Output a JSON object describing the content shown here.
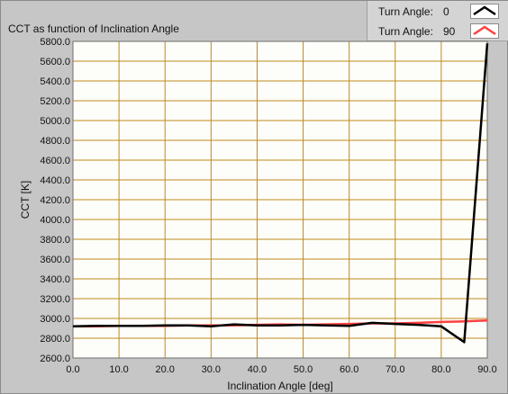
{
  "chart_title": "CCT as function of Inclination Angle",
  "legend": [
    {
      "label": "Turn Angle:",
      "value": "0",
      "color": "#000000"
    },
    {
      "label": "Turn Angle:",
      "value": "90",
      "color": "#ff4040"
    }
  ],
  "colors": {
    "plot_background": "#fdfdf9",
    "grid": "#c08a1c",
    "panel": "#c6c6c6"
  },
  "chart_data": {
    "type": "line",
    "xlabel": "Inclination Angle [deg]",
    "ylabel": "CCT [K]",
    "xlim": [
      0,
      90
    ],
    "ylim": [
      2600,
      5800
    ],
    "x_ticks": [
      "0.0",
      "10.0",
      "20.0",
      "30.0",
      "40.0",
      "50.0",
      "60.0",
      "70.0",
      "80.0",
      "90.0"
    ],
    "y_ticks": [
      "2600.0",
      "2800.0",
      "3000.0",
      "3200.0",
      "3400.0",
      "3600.0",
      "3800.0",
      "4000.0",
      "4200.0",
      "4400.0",
      "4600.0",
      "4800.0",
      "5000.0",
      "5200.0",
      "5400.0",
      "5600.0",
      "5800.0"
    ],
    "grid": true,
    "legend_position": "top-right",
    "series": [
      {
        "name": "Turn Angle: 0",
        "color": "#000000",
        "x": [
          0,
          5,
          10,
          15,
          20,
          25,
          30,
          35,
          40,
          45,
          50,
          55,
          60,
          65,
          70,
          75,
          80,
          85,
          90
        ],
        "y": [
          2920,
          2925,
          2925,
          2925,
          2930,
          2930,
          2920,
          2940,
          2930,
          2930,
          2935,
          2930,
          2925,
          2955,
          2945,
          2935,
          2920,
          2760,
          5780
        ]
      },
      {
        "name": "Turn Angle: 90",
        "color": "#ff4040",
        "x": [
          0,
          5,
          10,
          15,
          20,
          25,
          30,
          35,
          40,
          45,
          50,
          55,
          60,
          65,
          70,
          75,
          80,
          85,
          90
        ],
        "y": [
          2920,
          2920,
          2925,
          2925,
          2925,
          2930,
          2930,
          2930,
          2935,
          2940,
          2935,
          2940,
          2945,
          2950,
          2950,
          2955,
          2965,
          2970,
          2980
        ]
      }
    ]
  }
}
